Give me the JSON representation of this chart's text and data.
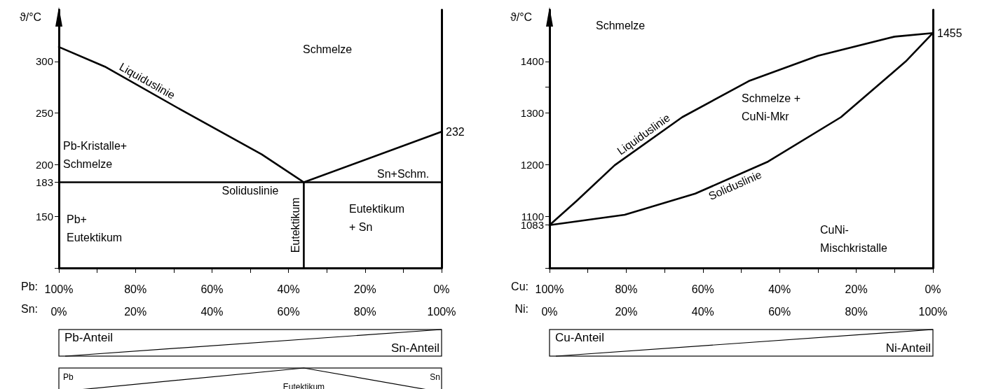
{
  "chart_data": [
    {
      "type": "line",
      "ylabel": "ϑ/°C",
      "xlabel": "Sn:",
      "x2label": "Pb:",
      "xlim": [
        0,
        100
      ],
      "ylim": [
        100,
        350
      ],
      "x2lim": [
        100,
        0
      ],
      "xticks": [
        {
          "value": 0,
          "label": "0%"
        },
        {
          "value": 10,
          "label": null
        },
        {
          "value": 20,
          "label": "20%"
        },
        {
          "value": 30,
          "label": null
        },
        {
          "value": 40,
          "label": "40%"
        },
        {
          "value": 50,
          "label": null
        },
        {
          "value": 60,
          "label": "60%"
        },
        {
          "value": 70,
          "label": null
        },
        {
          "value": 80,
          "label": "80%"
        },
        {
          "value": 90,
          "label": null
        },
        {
          "value": 100,
          "label": "100%"
        }
      ],
      "x2ticks": [
        {
          "value": 100,
          "label": "100%"
        },
        {
          "value": 80,
          "label": "80%"
        },
        {
          "value": 60,
          "label": "60%"
        },
        {
          "value": 40,
          "label": "40%"
        },
        {
          "value": 20,
          "label": "20%"
        },
        {
          "value": 0,
          "label": "0%"
        }
      ],
      "yticks": [
        {
          "value": 100,
          "label": null
        },
        150,
        183,
        200,
        250,
        300
      ],
      "series": [
        {
          "name": "Liquiduslinie",
          "color": "#000000",
          "x": [
            0,
            12,
            32,
            53,
            64
          ],
          "values": [
            314,
            295,
            253,
            210,
            183
          ]
        },
        {
          "color": "#000000",
          "x": [
            64,
            100
          ],
          "values": [
            183,
            232
          ]
        },
        {
          "name": "Soliduslinie",
          "color": "#000000",
          "x": [
            0,
            100
          ],
          "values": [
            183,
            183
          ]
        },
        {
          "name": "Eutektikum",
          "color": "#000000",
          "x": [
            64,
            64
          ],
          "values": [
            100,
            183
          ]
        }
      ],
      "annotations": [
        {
          "text": "232",
          "x": 100,
          "y": 232
        },
        "Schmelze",
        "Pb-Kristalle+\nSchmelze",
        "Sn+Schm.",
        "Pb+\nEutektikum",
        "Eutektikum\n+ Sn",
        "Pb-Anteil",
        "Sn-Anteil",
        "Pb",
        "Eutektikum",
        "Sn"
      ]
    },
    {
      "type": "line",
      "ylabel": "ϑ/°C",
      "xlabel": "Ni:",
      "x2label": "Cu:",
      "xlim": [
        0,
        100
      ],
      "ylim": [
        1000,
        1500
      ],
      "x2lim": [
        100,
        0
      ],
      "xticks": [
        {
          "value": 0,
          "label": "0%"
        },
        {
          "value": 10,
          "label": null
        },
        {
          "value": 20,
          "label": "20%"
        },
        {
          "value": 30,
          "label": null
        },
        {
          "value": 40,
          "label": "40%"
        },
        {
          "value": 50,
          "label": null
        },
        {
          "value": 60,
          "label": "60%"
        },
        {
          "value": 70,
          "label": null
        },
        {
          "value": 80,
          "label": "80%"
        },
        {
          "value": 90,
          "label": null
        },
        {
          "value": 100,
          "label": "100%"
        }
      ],
      "x2ticks": [
        {
          "value": 100,
          "label": "100%"
        },
        {
          "value": 80,
          "label": "80%"
        },
        {
          "value": 60,
          "label": "60%"
        },
        {
          "value": 40,
          "label": "40%"
        },
        {
          "value": 20,
          "label": "20%"
        },
        {
          "value": 0,
          "label": "0%"
        }
      ],
      "yticks": [
        {
          "value": 1000,
          "label": null
        },
        1083,
        1100,
        1200,
        1300,
        {
          "value": 1350,
          "label": null
        },
        1400
      ],
      "series": [
        {
          "name": "Liquiduslinie",
          "color": "#000000",
          "x": [
            0,
            7.1,
            17,
            34.6,
            52,
            70,
            90,
            100
          ],
          "values": [
            1083,
            1130,
            1199,
            1292,
            1362,
            1411,
            1448,
            1455
          ]
        },
        {
          "name": "Soliduslinie",
          "color": "#000000",
          "x": [
            0,
            19.6,
            38,
            57,
            76,
            92.9,
            100
          ],
          "values": [
            1083,
            1103,
            1144,
            1206,
            1292,
            1400,
            1455
          ]
        }
      ],
      "annotations": [
        {
          "text": "1455",
          "x": 100,
          "y": 1455
        },
        "Schmelze",
        "Schmelze +\nCuNi-Mkr",
        "CuNi-\nMischkristalle",
        "Cu-Anteil",
        "Ni-Anteil"
      ]
    }
  ]
}
